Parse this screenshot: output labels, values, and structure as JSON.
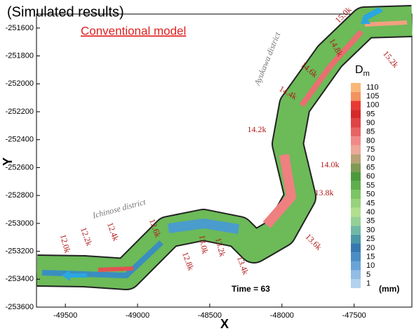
{
  "chart_data": {
    "type": "contour",
    "title": "(Simulated results)",
    "subtitle": "Conventional model",
    "xlabel": "X",
    "ylabel": "Y",
    "xlim": [
      -49700,
      -47100
    ],
    "xticks": [
      -49500,
      -49000,
      -48500,
      -48000,
      -47500
    ],
    "ylim": [
      -253600,
      -251500
    ],
    "yticks": [
      -251600,
      -251800,
      -252000,
      -252200,
      -252400,
      -252600,
      -252800,
      -253000,
      -253200,
      -253400,
      -253600
    ],
    "colorbar": {
      "title": "D",
      "title_sub": "m",
      "unit": "(mm)",
      "levels": [
        1,
        5,
        10,
        15,
        20,
        25,
        30,
        35,
        40,
        45,
        50,
        55,
        60,
        65,
        70,
        75,
        80,
        85,
        90,
        95,
        100,
        105,
        110
      ],
      "colors": [
        "#b4d2ee",
        "#92bce4",
        "#6aa4d6",
        "#4a8cc4",
        "#3878b0",
        "#4c98a6",
        "#70b8a4",
        "#94d096",
        "#b2de90",
        "#98d27c",
        "#7cc464",
        "#60ae4c",
        "#4c9a3c",
        "#7e9a54",
        "#b8a274",
        "#eca898",
        "#f08a88",
        "#e86464",
        "#e04444",
        "#d62a2a",
        "#e83a34",
        "#f29460",
        "#f8b878"
      ]
    },
    "annotations": {
      "districts": [
        "Ayukawa district",
        "Ichinose district"
      ],
      "km": [
        "15.0k",
        "15.2k",
        "14.8k",
        "14.6k",
        "14.4k",
        "14.2k",
        "14.0k",
        "13.8k",
        "13.6k",
        "13.4k",
        "13.2k",
        "13.0k",
        "12.8k",
        "12.6k",
        "12.4k",
        "12.2k",
        "12.0k"
      ],
      "time": "Time = 63"
    }
  }
}
